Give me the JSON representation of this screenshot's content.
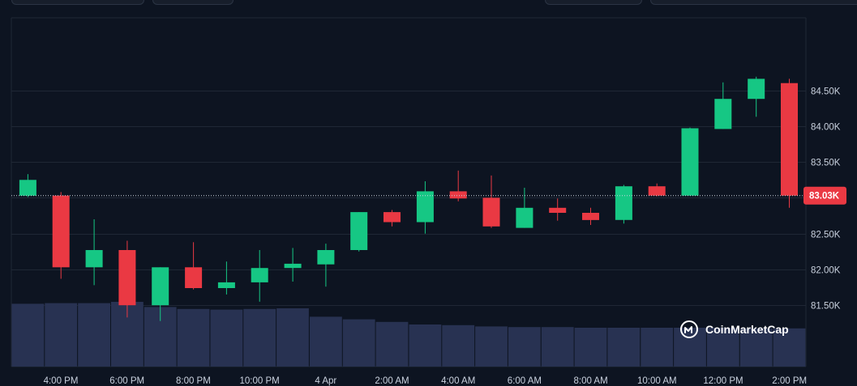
{
  "watermark": "CoinMarketCap",
  "colors": {
    "background": "#0d1421",
    "up": "#16c784",
    "down": "#ea3943",
    "volume": "#283252",
    "grid": "#1f2735",
    "text": "#c9d1de"
  },
  "chart_data": {
    "type": "candlestick",
    "title": "",
    "current_price": 83030,
    "current_price_label": "83.03K",
    "ylim": [
      81000,
      84950
    ],
    "y_ticks": [
      {
        "value": 81500,
        "label": "81.50K"
      },
      {
        "value": 82000,
        "label": "82.00K"
      },
      {
        "value": 82500,
        "label": "82.50K"
      },
      {
        "value": 83000,
        "label": "83.00K"
      },
      {
        "value": 83500,
        "label": "83.50K"
      },
      {
        "value": 84000,
        "label": "84.00K"
      },
      {
        "value": 84500,
        "label": "84.50K"
      }
    ],
    "x_ticks": [
      "4:00 PM",
      "6:00 PM",
      "8:00 PM",
      "10:00 PM",
      "4 Apr",
      "2:00 AM",
      "4:00 AM",
      "6:00 AM",
      "8:00 AM",
      "10:00 AM",
      "12:00 PM",
      "2:00 PM"
    ],
    "candles": [
      {
        "o": 83030,
        "h": 83330,
        "l": 83010,
        "c": 83250
      },
      {
        "o": 83030,
        "h": 83080,
        "l": 81870,
        "c": 82030
      },
      {
        "o": 82030,
        "h": 82700,
        "l": 81780,
        "c": 82270
      },
      {
        "o": 82270,
        "h": 82400,
        "l": 81330,
        "c": 81500
      },
      {
        "o": 81500,
        "h": 82030,
        "l": 81280,
        "c": 82030
      },
      {
        "o": 82030,
        "h": 82380,
        "l": 81720,
        "c": 81740
      },
      {
        "o": 81740,
        "h": 82110,
        "l": 81650,
        "c": 81820
      },
      {
        "o": 81820,
        "h": 82270,
        "l": 81550,
        "c": 82020
      },
      {
        "o": 82020,
        "h": 82300,
        "l": 81830,
        "c": 82080
      },
      {
        "o": 82070,
        "h": 82360,
        "l": 81760,
        "c": 82270
      },
      {
        "o": 82270,
        "h": 82800,
        "l": 82250,
        "c": 82800
      },
      {
        "o": 82800,
        "h": 82830,
        "l": 82600,
        "c": 82660
      },
      {
        "o": 82660,
        "h": 83230,
        "l": 82500,
        "c": 83090
      },
      {
        "o": 83090,
        "h": 83380,
        "l": 82950,
        "c": 82990
      },
      {
        "o": 83000,
        "h": 83310,
        "l": 82580,
        "c": 82600
      },
      {
        "o": 82580,
        "h": 83140,
        "l": 82580,
        "c": 82860
      },
      {
        "o": 82860,
        "h": 82990,
        "l": 82680,
        "c": 82790
      },
      {
        "o": 82790,
        "h": 82860,
        "l": 82620,
        "c": 82690
      },
      {
        "o": 82690,
        "h": 83180,
        "l": 82640,
        "c": 83160
      },
      {
        "o": 83160,
        "h": 83200,
        "l": 83020,
        "c": 83030
      },
      {
        "o": 83030,
        "h": 83980,
        "l": 83030,
        "c": 83970
      },
      {
        "o": 83960,
        "h": 84610,
        "l": 83960,
        "c": 84380
      },
      {
        "o": 84380,
        "h": 84690,
        "l": 84130,
        "c": 84660
      },
      {
        "o": 84600,
        "h": 84660,
        "l": 82860,
        "c": 83030
      }
    ],
    "volumes": [
      0.97,
      0.98,
      0.98,
      1.0,
      0.92,
      0.89,
      0.88,
      0.89,
      0.9,
      0.77,
      0.73,
      0.69,
      0.65,
      0.64,
      0.62,
      0.61,
      0.61,
      0.6,
      0.6,
      0.6,
      0.6,
      0.6,
      0.59,
      0.59
    ]
  }
}
